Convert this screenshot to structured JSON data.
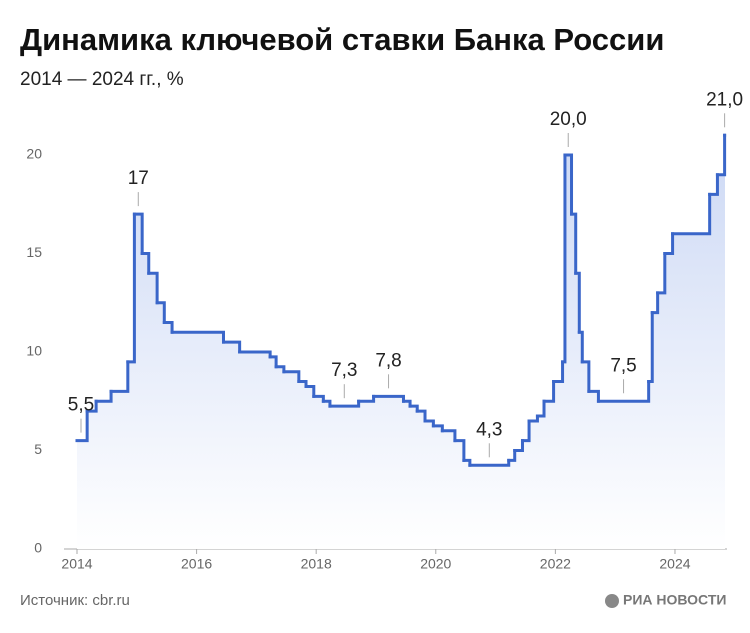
{
  "chart_data": {
    "type": "step",
    "title": "Динамика ключевой ставки Банка России",
    "subtitle": "2014 — 2024 гг., %",
    "source": "Источник: cbr.ru",
    "brand": "РИА НОВОСТИ",
    "color": "#3a66c9",
    "x": [
      2014.0,
      2014.17,
      2014.32,
      2014.57,
      2014.85,
      2014.96,
      2015.09,
      2015.2,
      2015.34,
      2015.46,
      2015.59,
      2016.45,
      2016.72,
      2017.23,
      2017.33,
      2017.46,
      2017.71,
      2017.83,
      2017.96,
      2018.12,
      2018.23,
      2018.71,
      2018.96,
      2019.46,
      2019.57,
      2019.69,
      2019.82,
      2019.96,
      2020.11,
      2020.32,
      2020.47,
      2020.57,
      2021.22,
      2021.32,
      2021.45,
      2021.56,
      2021.7,
      2021.81,
      2021.97,
      2022.12,
      2022.16,
      2022.27,
      2022.34,
      2022.4,
      2022.45,
      2022.56,
      2022.72,
      2023.56,
      2023.62,
      2023.71,
      2023.83,
      2023.96,
      2024.58,
      2024.71,
      2024.83
    ],
    "values": [
      5.5,
      7,
      7.5,
      8,
      9.5,
      17,
      15,
      14,
      12.5,
      11.5,
      11,
      10.5,
      10,
      9.75,
      9.25,
      9,
      8.5,
      8.25,
      7.75,
      7.5,
      7.25,
      7.5,
      7.75,
      7.5,
      7.25,
      7,
      6.5,
      6.25,
      6,
      5.5,
      4.5,
      4.25,
      4.5,
      5,
      5.5,
      6.5,
      6.75,
      7.5,
      8.5,
      9.5,
      20,
      17,
      14,
      11,
      9.5,
      8,
      7.5,
      8.5,
      12,
      13,
      15,
      16,
      18,
      19,
      21
    ],
    "value_labels": [
      "5,5",
      null,
      null,
      null,
      null,
      "17",
      null,
      null,
      null,
      null,
      null,
      null,
      null,
      null,
      null,
      null,
      null,
      null,
      null,
      null,
      "7,3",
      null,
      "7,8",
      null,
      null,
      null,
      null,
      null,
      null,
      null,
      null,
      "4,3",
      null,
      null,
      null,
      null,
      null,
      null,
      null,
      null,
      "20,0",
      null,
      null,
      null,
      null,
      null,
      "7,5",
      null,
      null,
      null,
      null,
      null,
      null,
      null,
      "21,0"
    ],
    "xlim": [
      2013.95,
      2024.87
    ],
    "xticks": [
      2014,
      2016,
      2018,
      2020,
      2022,
      2024
    ],
    "ylim": [
      0,
      22
    ],
    "yticks": [
      0,
      5,
      10,
      15,
      20
    ]
  }
}
